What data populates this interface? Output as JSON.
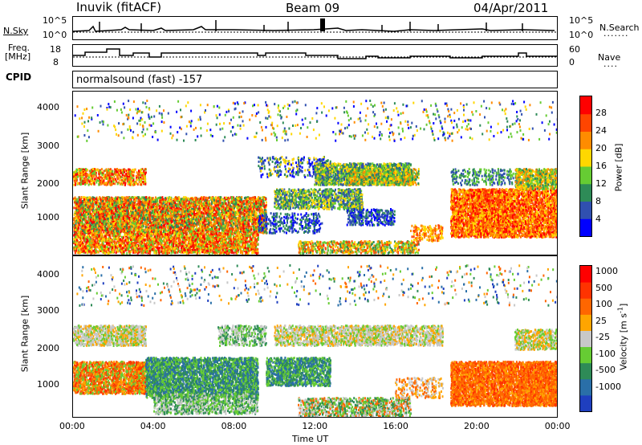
{
  "header": {
    "station": "Inuvik (fitACF)",
    "beam": "Beam 09",
    "date": "04/Apr/2011"
  },
  "strip1": {
    "left_label": "N.Sky",
    "right_label": "N.Search",
    "left_ticks": [
      "10^5",
      "10^0"
    ],
    "right_ticks": [
      "10^5",
      "10^0"
    ]
  },
  "strip2": {
    "left_label_1": "Freq.",
    "left_label_2": "[MHz]",
    "right_label": "Nave",
    "left_ticks": [
      "18",
      "8"
    ],
    "right_ticks": [
      "60",
      "0"
    ]
  },
  "cpid": {
    "label": "CPID",
    "value": "normalsound (fast) -157"
  },
  "chart_data": [
    {
      "type": "heatmap",
      "title": "",
      "xlabel": "",
      "ylabel": "Slant Range [km]",
      "ylim": [
        180,
        4500
      ],
      "y_ticks": [
        "1000",
        "2000",
        "3000",
        "4000"
      ],
      "colorbar_label": "Power [dB]",
      "colorbar_ticks": [
        "4",
        "8",
        "12",
        "16",
        "20",
        "24",
        "28"
      ],
      "colors": [
        "#0000ff",
        "#3050b0",
        "#2e8b57",
        "#66cc33",
        "#ffd700",
        "#ff8c00",
        "#ff4500",
        "#ff0000"
      ]
    },
    {
      "type": "heatmap",
      "title": "",
      "xlabel": "Time UT",
      "ylabel": "Slant Range [km]",
      "ylim": [
        180,
        4500
      ],
      "y_ticks": [
        "1000",
        "2000",
        "3000",
        "4000"
      ],
      "x_ticks": [
        "00:00",
        "04:00",
        "08:00",
        "12:00",
        "16:00",
        "20:00",
        "00:00"
      ],
      "colorbar_label": "Velocity [m s",
      "colorbar_label_sup": "-1",
      "colorbar_label_end": "]",
      "colorbar_ticks": [
        "1000",
        "500",
        "100",
        "25",
        "-25",
        "-100",
        "-500",
        "-1000"
      ],
      "colors": [
        "#1f3fbf",
        "#2a6fa8",
        "#2e8b57",
        "#66cc33",
        "#c8c8c8",
        "#ffa500",
        "#ff6600",
        "#ff3300",
        "#ff0000"
      ]
    }
  ]
}
